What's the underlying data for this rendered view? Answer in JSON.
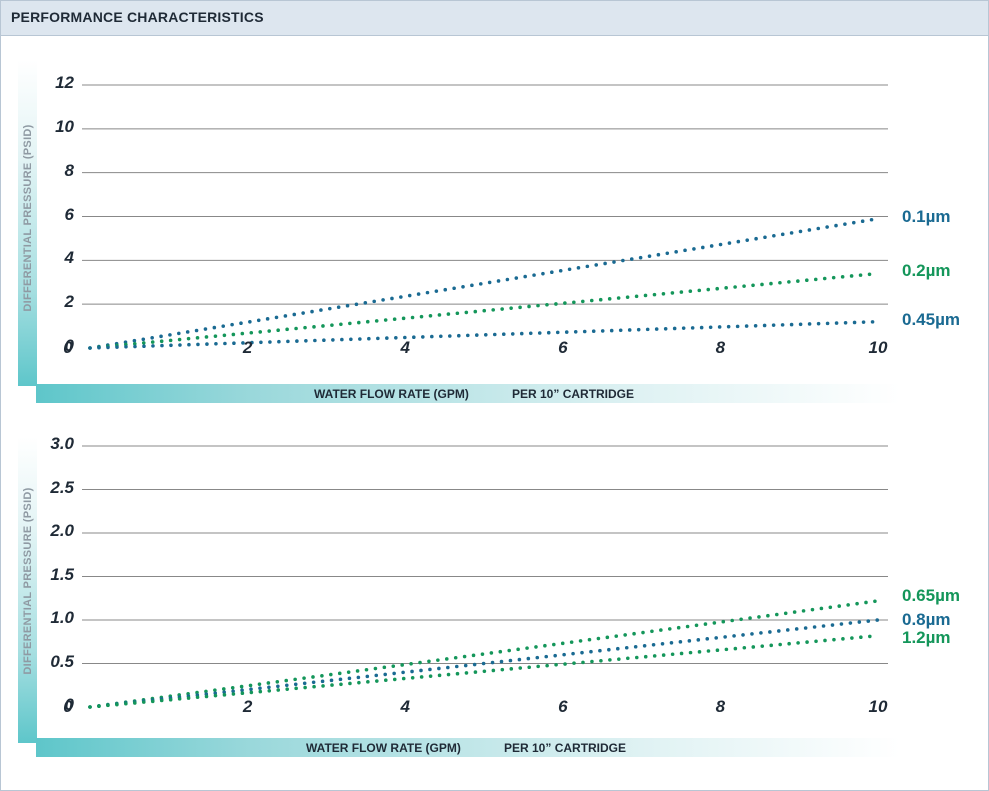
{
  "header": {
    "title": "PERFORMANCE CHARACTERISTICS"
  },
  "colors": {
    "blue": "#1a6a92",
    "green": "#14965a",
    "grid": "#888888",
    "teal": "#5ec6ca"
  },
  "chart_data": [
    {
      "type": "line",
      "ylabel": "DIFFERENTIAL PRESSURE (PSID)",
      "xlabel": "WATER FLOW RATE (GPM)",
      "xlabel_note": "PER 10” CARTRIDGE",
      "xlim": [
        0,
        10
      ],
      "ylim": [
        0,
        12
      ],
      "grid": true,
      "x_ticks": [
        "0",
        "2",
        "4",
        "6",
        "8",
        "10"
      ],
      "y_ticks": [
        "0",
        "2",
        "4",
        "6",
        "8",
        "10",
        "12"
      ],
      "series": [
        {
          "name": "0.1µm",
          "color": "#1a6a92",
          "x": [
            0,
            10
          ],
          "y": [
            0,
            5.9
          ]
        },
        {
          "name": "0.2µm",
          "color": "#14965a",
          "x": [
            0,
            10
          ],
          "y": [
            0,
            3.4
          ]
        },
        {
          "name": "0.45µm",
          "color": "#1a6a92",
          "x": [
            0,
            10
          ],
          "y": [
            0,
            1.2
          ]
        }
      ]
    },
    {
      "type": "line",
      "ylabel": "DIFFERENTIAL PRESSURE (PSID)",
      "xlabel": "WATER FLOW RATE (GPM)",
      "xlabel_note": "PER 10” CARTRIDGE",
      "xlim": [
        0,
        10
      ],
      "ylim": [
        0,
        3.0
      ],
      "grid": true,
      "x_ticks": [
        "0",
        "2",
        "4",
        "6",
        "8",
        "10"
      ],
      "y_ticks": [
        "0",
        "0.5",
        "1.0",
        "1.5",
        "2.0",
        "2.5",
        "3.0"
      ],
      "series": [
        {
          "name": "0.65µm",
          "color": "#14965a",
          "x": [
            0,
            10
          ],
          "y": [
            0,
            1.22
          ]
        },
        {
          "name": "0.8µm",
          "color": "#1a6a92",
          "x": [
            0,
            10
          ],
          "y": [
            0,
            1.0
          ]
        },
        {
          "name": "1.2µm",
          "color": "#14965a",
          "x": [
            0,
            10
          ],
          "y": [
            0,
            0.82
          ]
        }
      ]
    }
  ]
}
